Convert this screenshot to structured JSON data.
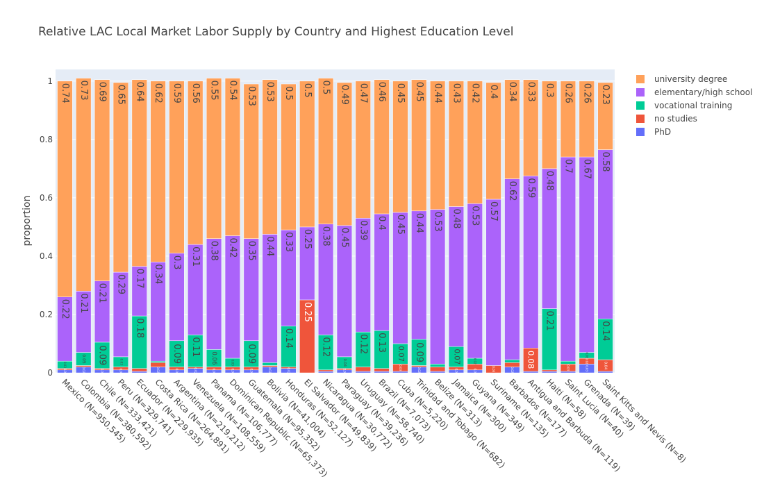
{
  "chart_data": {
    "type": "bar",
    "stacked": true,
    "title": "Relative LAC Local Market Labor Supply by Country and Highest Education Level",
    "ylabel": "proportion",
    "xlabel": "",
    "ylim": [
      0,
      1.04
    ],
    "yticks": [
      0,
      0.2,
      0.4,
      0.6,
      0.8,
      1
    ],
    "ytick_labels": [
      "0",
      "0.2",
      "0.4",
      "0.6",
      "0.8",
      "1"
    ],
    "legend_position": "top-right",
    "categories": [
      "Mexico (N=950,545)",
      "Colombia (N=380,592)",
      "Chile (N=333,421)",
      "Peru (N=329,741)",
      "Ecuador (N=229,935)",
      "Costa Rica (N=264,891)",
      "Argentina (N=219,212)",
      "Venezuela (N=108,559)",
      "Panama (N=106,777)",
      "Dominican Republic (N=65,373)",
      "Guatemala (N=95,352)",
      "Bolivia (N=41,004)",
      "Honduras (N=52,127)",
      "El Salvador (N=49,839)",
      "Nicaragua (N=30,772)",
      "Paraguay (N=39,236)",
      "Uruguay (N=58,740)",
      "Brazil (N=7,073)",
      "Cuba (N=5,220)",
      "Trinidad and Tobago (N=682)",
      "Belize (N=313)",
      "Jamaica (N=300)",
      "Guyana (N=349)",
      "Suriname (N=135)",
      "Barbados (N=177)",
      "Antigua and Barbuda (N=119)",
      "Haiti (N=58)",
      "Saint Lucia (N=40)",
      "Grenada (N=39)",
      "Saint Kitts and Nevis (N=8)"
    ],
    "series": [
      {
        "name": "PhD",
        "color": "#636EFA",
        "values": [
          0.01,
          0.02,
          0.01,
          0.01,
          0.005,
          0.02,
          0.01,
          0.015,
          0.01,
          0.01,
          0.01,
          0.02,
          0.015,
          0.0,
          0.005,
          0.01,
          0.005,
          0.005,
          0.005,
          0.02,
          0.005,
          0.01,
          0.01,
          0.0,
          0.02,
          0.005,
          0.005,
          0.005,
          0.03,
          0.005
        ],
        "labels": [
          "0.01",
          "0.02",
          "0.01",
          "0.01",
          "",
          "0.02",
          "0.01",
          "0.02",
          "0.01",
          "0.01",
          "0.01",
          "0.02",
          "0.02",
          "",
          "",
          "0.01",
          "",
          "",
          "",
          "0.02",
          "",
          "0.01",
          "0.01",
          "",
          "0.02",
          "",
          "",
          "",
          "0.03",
          ""
        ]
      },
      {
        "name": "no studies",
        "color": "#EF553B",
        "values": [
          0.005,
          0.005,
          0.005,
          0.01,
          0.01,
          0.015,
          0.01,
          0.005,
          0.01,
          0.01,
          0.01,
          0.005,
          0.005,
          0.25,
          0.005,
          0.005,
          0.015,
          0.01,
          0.025,
          0.005,
          0.015,
          0.01,
          0.02,
          0.025,
          0.015,
          0.08,
          0.005,
          0.025,
          0.02,
          0.04
        ],
        "labels": [
          "",
          "",
          "",
          "",
          "",
          "",
          "",
          "",
          "",
          "",
          "",
          "",
          "",
          "0.25",
          "",
          "",
          "",
          "",
          "0.03",
          "",
          "",
          "",
          "",
          "0.03",
          "",
          "0.08",
          "",
          "0.03",
          "0.02",
          "0.04"
        ]
      },
      {
        "name": "vocational training",
        "color": "#00CC96",
        "values": [
          0.025,
          0.045,
          0.09,
          0.035,
          0.18,
          0.005,
          0.09,
          0.11,
          0.06,
          0.03,
          0.09,
          0.01,
          0.14,
          0.0,
          0.12,
          0.04,
          0.12,
          0.13,
          0.07,
          0.09,
          0.01,
          0.07,
          0.02,
          0.0,
          0.01,
          0.0,
          0.21,
          0.01,
          0.02,
          0.14
        ],
        "labels": [
          "0.03",
          "0.05",
          "0.09",
          "0.03",
          "0.18",
          "",
          "0.09",
          "0.11",
          "0.06",
          "0.03",
          "0.09",
          "",
          "0.14",
          "",
          "0.12",
          "0.04",
          "0.12",
          "0.13",
          "0.07",
          "0.09",
          "",
          "0.07",
          "0.02",
          "",
          "",
          "",
          "0.21",
          "",
          "0.02",
          "0.14"
        ]
      },
      {
        "name": "elementary/high school",
        "color": "#AB63FA",
        "values": [
          0.22,
          0.21,
          0.21,
          0.29,
          0.17,
          0.34,
          0.3,
          0.31,
          0.38,
          0.42,
          0.35,
          0.44,
          0.33,
          0.25,
          0.38,
          0.45,
          0.39,
          0.4,
          0.45,
          0.44,
          0.53,
          0.48,
          0.53,
          0.57,
          0.62,
          0.59,
          0.48,
          0.7,
          0.67,
          0.58
        ],
        "labels": [
          "0.22",
          "0.21",
          "0.21",
          "0.29",
          "0.17",
          "0.34",
          "0.3",
          "0.31",
          "0.38",
          "0.42",
          "0.35",
          "0.44",
          "0.33",
          "0.25",
          "0.38",
          "0.45",
          "0.39",
          "0.4",
          "0.45",
          "0.44",
          "0.53",
          "0.48",
          "0.53",
          "0.57",
          "0.62",
          "0.59",
          "0.48",
          "0.7",
          "0.67",
          "0.58"
        ]
      },
      {
        "name": "university degree",
        "color": "#FFA15A",
        "values": [
          0.74,
          0.73,
          0.69,
          0.65,
          0.64,
          0.62,
          0.59,
          0.56,
          0.55,
          0.54,
          0.53,
          0.53,
          0.5,
          0.5,
          0.5,
          0.49,
          0.47,
          0.46,
          0.45,
          0.45,
          0.44,
          0.43,
          0.42,
          0.4,
          0.34,
          0.33,
          0.3,
          0.26,
          0.26,
          0.23
        ],
        "labels": [
          "0.74",
          "0.73",
          "0.69",
          "0.65",
          "0.64",
          "0.62",
          "0.59",
          "0.56",
          "0.55",
          "0.54",
          "0.53",
          "0.53",
          "0.5",
          "0.5",
          "0.5",
          "0.49",
          "0.47",
          "0.46",
          "0.45",
          "0.45",
          "0.44",
          "0.43",
          "0.42",
          "0.4",
          "0.34",
          "0.33",
          "0.3",
          "0.26",
          "0.26",
          "0.23"
        ]
      }
    ],
    "legend_order": [
      "university degree",
      "elementary/high school",
      "vocational training",
      "no studies",
      "PhD"
    ]
  },
  "colors": {
    "plot_background": "#E5ECF6",
    "gridline": "#ffffff",
    "text": "#444444"
  }
}
